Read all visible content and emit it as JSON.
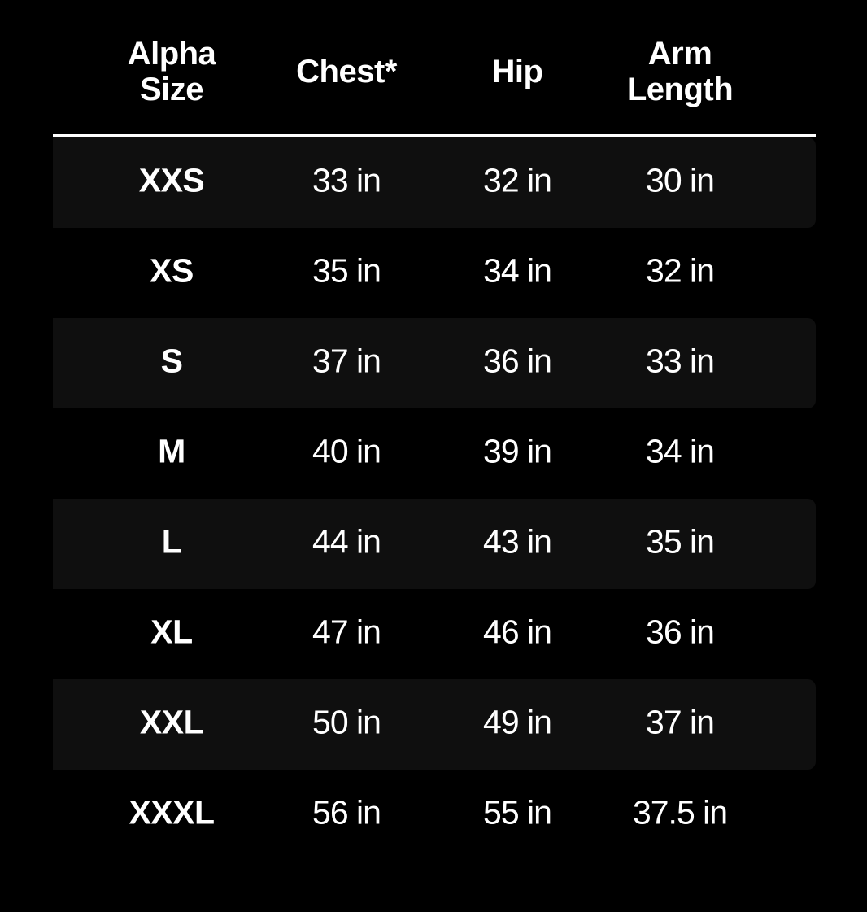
{
  "table": {
    "headers": [
      [
        "Alpha",
        "Size"
      ],
      [
        "Chest*"
      ],
      [
        "Hip"
      ],
      [
        "Arm",
        "Length"
      ]
    ],
    "rows": [
      [
        "XXS",
        "33 in",
        "32 in",
        "30 in"
      ],
      [
        "XS",
        "35 in",
        "34 in",
        "32 in"
      ],
      [
        "S",
        "37 in",
        "36 in",
        "33 in"
      ],
      [
        "M",
        "40 in",
        "39 in",
        "34 in"
      ],
      [
        "L",
        "44 in",
        "43 in",
        "35 in"
      ],
      [
        "XL",
        "47 in",
        "46 in",
        "36 in"
      ],
      [
        "XXL",
        "50 in",
        "49 in",
        "37 in"
      ],
      [
        "XXXL",
        "56 in",
        "55 in",
        "37.5 in"
      ]
    ]
  }
}
